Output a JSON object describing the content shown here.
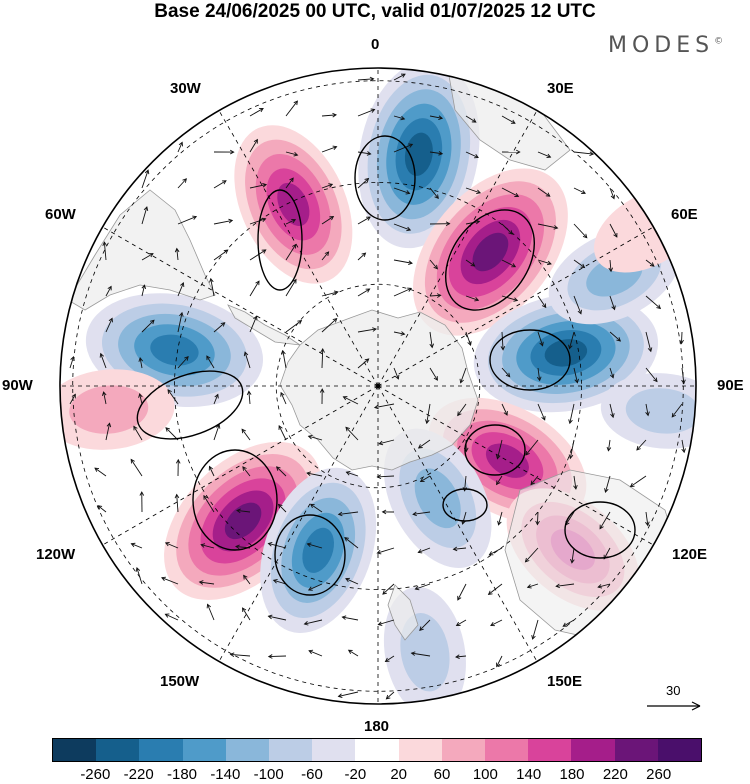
{
  "title": "Base 24/06/2025 00 UTC, valid 01/07/2025 12 UTC",
  "brand": {
    "name": "MODES",
    "mark": "©"
  },
  "longitude_labels": [
    "0",
    "30E",
    "60E",
    "90E",
    "120E",
    "150E",
    "180",
    "150W",
    "120W",
    "90W",
    "60W",
    "30W"
  ],
  "reference_vector": {
    "label": "30"
  },
  "colorbar": {
    "ticks": [
      "-260",
      "-220",
      "-180",
      "-140",
      "-100",
      "-60",
      "-20",
      "20",
      "60",
      "100",
      "140",
      "180",
      "220",
      "260"
    ],
    "colors": [
      "#0d3b5e",
      "#155f8c",
      "#2a7db0",
      "#4f9bc9",
      "#8ab7da",
      "#bccde6",
      "#e0e0ef",
      "#ffffff",
      "#fbd9dc",
      "#f4a9bd",
      "#ec78a9",
      "#d9439b",
      "#a51e8a",
      "#6b1578",
      "#4a0f6b"
    ]
  },
  "anomalies": [
    {
      "lon": 10,
      "r": 0.74,
      "value": -260
    },
    {
      "lon": 40,
      "r": 0.55,
      "value": 270
    },
    {
      "lon": 80,
      "r": 0.6,
      "value": -250
    },
    {
      "lon": 120,
      "r": 0.47,
      "value": 210
    },
    {
      "lon": 130,
      "r": 0.8,
      "value": 160
    },
    {
      "lon": 152,
      "r": 0.4,
      "value": -150
    },
    {
      "lon": 170,
      "r": 0.85,
      "value": -100
    },
    {
      "lon": -135,
      "r": 0.6,
      "value": 260
    },
    {
      "lon": -160,
      "r": 0.55,
      "value": -210
    },
    {
      "lon": -80,
      "r": 0.65,
      "value": -230
    },
    {
      "lon": -25,
      "r": 0.63,
      "value": 200
    },
    {
      "lon": 65,
      "r": 0.82,
      "value": -120
    },
    {
      "lon": 95,
      "r": 0.9,
      "value": -80
    },
    {
      "lon": -95,
      "r": 0.85,
      "value": 100
    },
    {
      "lon": 60,
      "r": 0.98,
      "value": 60
    }
  ]
}
